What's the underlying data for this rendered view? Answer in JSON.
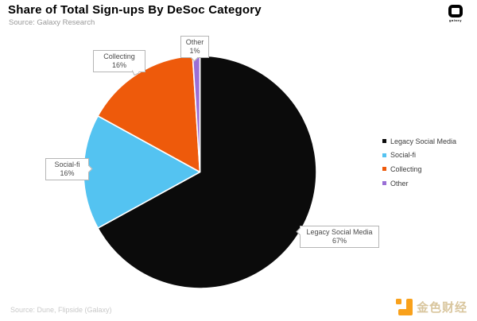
{
  "header": {
    "title": "Share of Total Sign-ups By DeSoc Category",
    "subtitle": "Source: Galaxy Research"
  },
  "branding": {
    "galaxy_wordmark": "galaxy",
    "jinse_wordmark": "金色财经"
  },
  "callouts": {
    "other": {
      "label": "Other",
      "value": "1%"
    },
    "collecting": {
      "label": "Collecting",
      "value": "16%"
    },
    "social_fi": {
      "label": "Social-fi",
      "value": "16%"
    },
    "legacy": {
      "label": "Legacy Social Media",
      "value": "67%"
    }
  },
  "footer": {
    "source": "Source: Dune, Flipside (Galaxy)"
  },
  "chart_data": {
    "type": "pie",
    "title": "Share of Total Sign-ups By DeSoc Category",
    "subtitle": "Source: Galaxy Research",
    "categories": [
      "Legacy Social Media",
      "Social-fi",
      "Collecting",
      "Other"
    ],
    "values": [
      67,
      16,
      16,
      1
    ],
    "unit": "%",
    "colors": [
      "#0b0b0b",
      "#54c3f1",
      "#ee5a0b",
      "#9a6fd6"
    ],
    "start_angle": "top",
    "direction": "clockwise",
    "legend_position": "right",
    "slice_labels": [
      "Legacy Social Media 67%",
      "Social-fi 16%",
      "Collecting 16%",
      "Other 1%"
    ]
  }
}
